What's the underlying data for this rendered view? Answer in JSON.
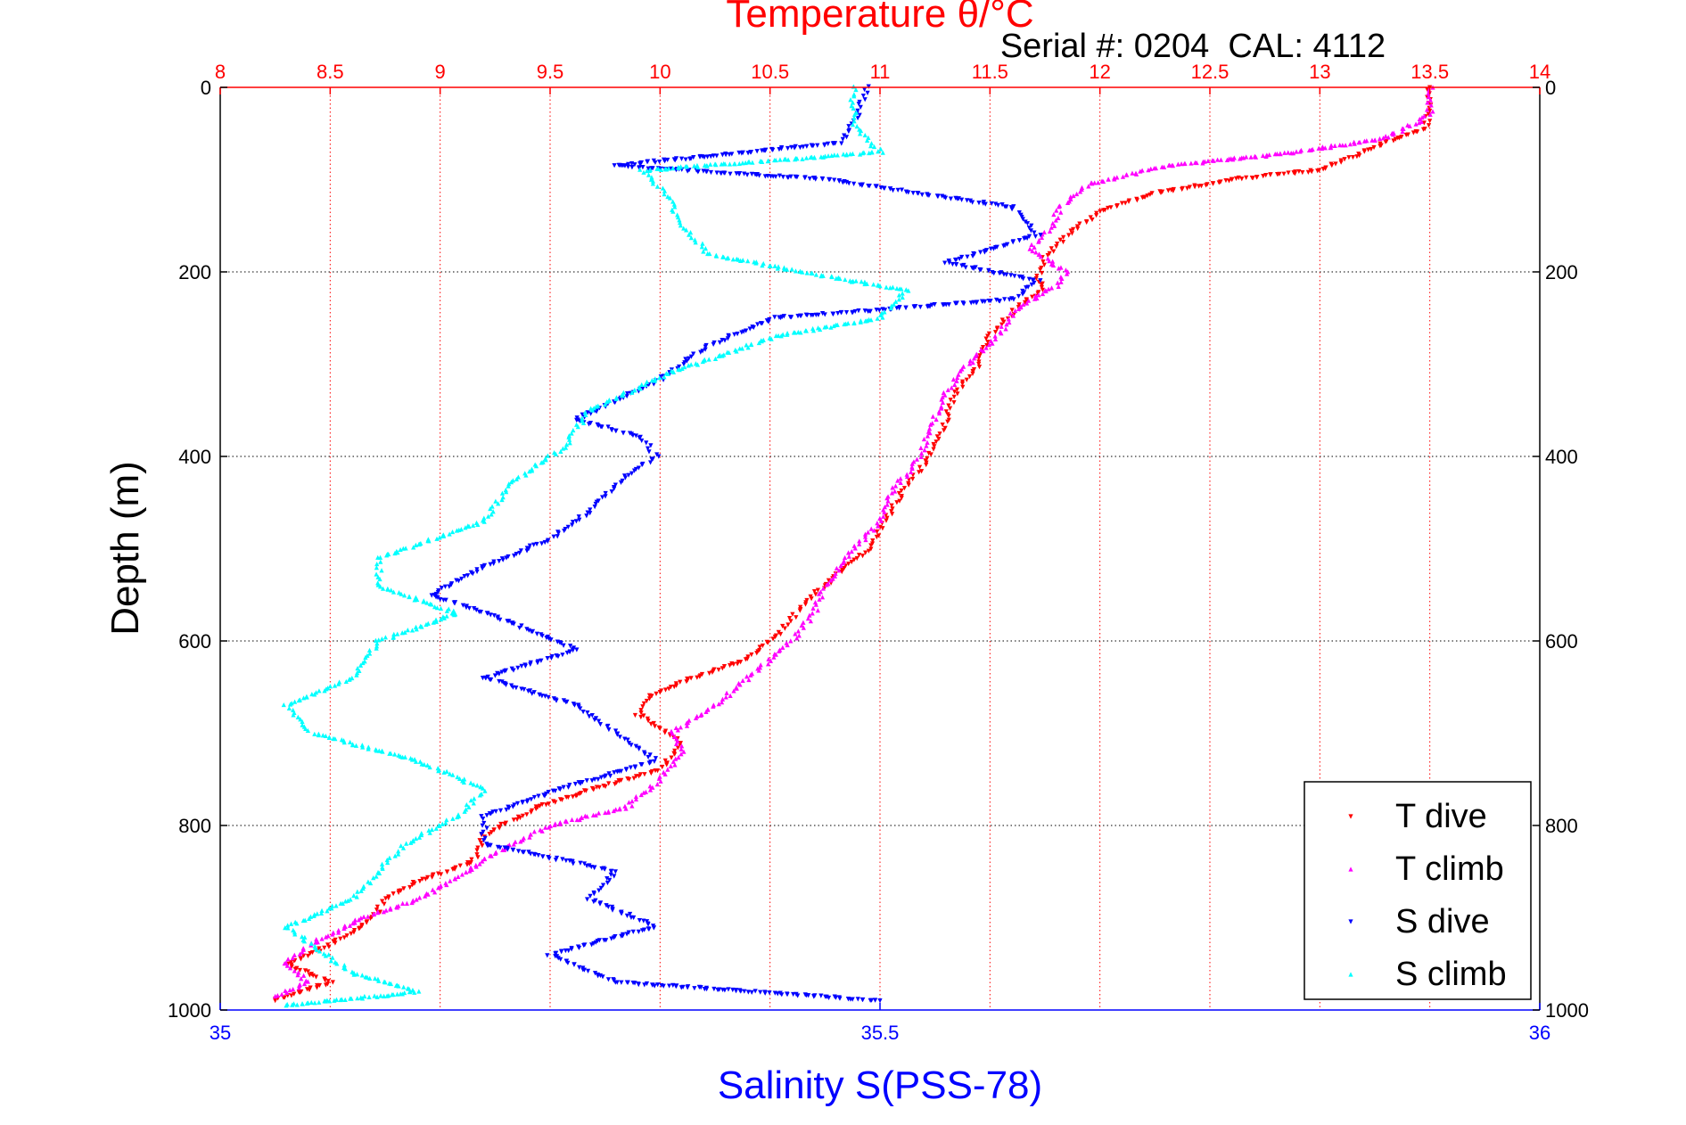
{
  "chart_data": {
    "type": "scatter",
    "title": "Temperature θ/°C",
    "subtitle": "Serial #: 0204  CAL: 4112",
    "ylabel": "Depth (m)",
    "xlabel": "Salinity S(PSS-78)",
    "top_axis": {
      "label": "Temperature θ/°C",
      "range": [
        8,
        14
      ],
      "ticks": [
        "8",
        "8.5",
        "9",
        "9.5",
        "10",
        "10.5",
        "11",
        "11.5",
        "12",
        "12.5",
        "13",
        "13.5",
        "14"
      ],
      "color": "#ff0000"
    },
    "bottom_axis": {
      "label": "Salinity S(PSS-78)",
      "range": [
        35,
        36
      ],
      "ticks": [
        "35",
        "35.5",
        "36"
      ],
      "color": "#0000ff"
    },
    "y_axis": {
      "range": [
        0,
        1000
      ],
      "reversed": true,
      "ticks": [
        "0",
        "200",
        "400",
        "600",
        "800",
        "1000"
      ]
    },
    "grid": true,
    "legend": {
      "placement": "bottom-right",
      "entries": [
        "T dive",
        "T climb",
        "S dive",
        "S climb"
      ]
    },
    "series": [
      {
        "name": "T dive",
        "variable": "temperature",
        "color": "#ff0000",
        "points": [
          [
            13.5,
            0
          ],
          [
            13.5,
            20
          ],
          [
            13.48,
            45
          ],
          [
            13.3,
            60
          ],
          [
            13.0,
            90
          ],
          [
            12.6,
            100
          ],
          [
            12.25,
            115
          ],
          [
            12.0,
            135
          ],
          [
            11.85,
            160
          ],
          [
            11.75,
            185
          ],
          [
            11.72,
            205
          ],
          [
            11.74,
            220
          ],
          [
            11.62,
            240
          ],
          [
            11.5,
            270
          ],
          [
            11.45,
            300
          ],
          [
            11.35,
            330
          ],
          [
            11.3,
            360
          ],
          [
            11.25,
            390
          ],
          [
            11.2,
            410
          ],
          [
            11.1,
            440
          ],
          [
            11.02,
            470
          ],
          [
            10.95,
            500
          ],
          [
            10.8,
            530
          ],
          [
            10.65,
            560
          ],
          [
            10.55,
            590
          ],
          [
            10.4,
            620
          ],
          [
            10.15,
            640
          ],
          [
            9.95,
            660
          ],
          [
            9.9,
            680
          ],
          [
            10.1,
            710
          ],
          [
            10.0,
            740
          ],
          [
            9.7,
            760
          ],
          [
            9.45,
            780
          ],
          [
            9.2,
            810
          ],
          [
            9.15,
            840
          ],
          [
            8.9,
            860
          ],
          [
            8.75,
            880
          ],
          [
            8.7,
            900
          ],
          [
            8.5,
            930
          ],
          [
            8.3,
            950
          ],
          [
            8.5,
            970
          ],
          [
            8.25,
            990
          ]
        ]
      },
      {
        "name": "T climb",
        "variable": "temperature",
        "color": "#ff00ff",
        "points": [
          [
            13.5,
            0
          ],
          [
            13.5,
            30
          ],
          [
            13.3,
            55
          ],
          [
            12.9,
            70
          ],
          [
            12.3,
            85
          ],
          [
            11.95,
            105
          ],
          [
            11.82,
            130
          ],
          [
            11.78,
            150
          ],
          [
            11.68,
            175
          ],
          [
            11.85,
            200
          ],
          [
            11.8,
            215
          ],
          [
            11.62,
            240
          ],
          [
            11.55,
            265
          ],
          [
            11.4,
            300
          ],
          [
            11.3,
            330
          ],
          [
            11.25,
            360
          ],
          [
            11.18,
            400
          ],
          [
            11.05,
            440
          ],
          [
            11.0,
            470
          ],
          [
            10.85,
            510
          ],
          [
            10.75,
            540
          ],
          [
            10.7,
            570
          ],
          [
            10.6,
            600
          ],
          [
            10.5,
            620
          ],
          [
            10.35,
            650
          ],
          [
            10.25,
            670
          ],
          [
            10.05,
            700
          ],
          [
            10.1,
            720
          ],
          [
            10.0,
            750
          ],
          [
            9.85,
            780
          ],
          [
            9.5,
            800
          ],
          [
            9.25,
            830
          ],
          [
            9.05,
            860
          ],
          [
            8.9,
            880
          ],
          [
            8.65,
            900
          ],
          [
            8.4,
            930
          ],
          [
            8.3,
            950
          ],
          [
            8.4,
            970
          ],
          [
            8.25,
            985
          ]
        ]
      },
      {
        "name": "S dive",
        "variable": "salinity",
        "color": "#0000ff",
        "points": [
          [
            35.49,
            0
          ],
          [
            35.48,
            40
          ],
          [
            35.47,
            60
          ],
          [
            35.3,
            85
          ],
          [
            35.46,
            100
          ],
          [
            35.6,
            130
          ],
          [
            35.62,
            160
          ],
          [
            35.55,
            190
          ],
          [
            35.62,
            210
          ],
          [
            35.6,
            230
          ],
          [
            35.42,
            250
          ],
          [
            35.37,
            280
          ],
          [
            35.33,
            320
          ],
          [
            35.27,
            360
          ],
          [
            35.32,
            380
          ],
          [
            35.33,
            400
          ],
          [
            35.3,
            430
          ],
          [
            35.28,
            460
          ],
          [
            35.25,
            490
          ],
          [
            35.2,
            520
          ],
          [
            35.16,
            550
          ],
          [
            35.22,
            580
          ],
          [
            35.27,
            610
          ],
          [
            35.2,
            640
          ],
          [
            35.27,
            670
          ],
          [
            35.3,
            700
          ],
          [
            35.33,
            730
          ],
          [
            35.26,
            760
          ],
          [
            35.2,
            790
          ],
          [
            35.2,
            820
          ],
          [
            35.3,
            850
          ],
          [
            35.28,
            880
          ],
          [
            35.33,
            910
          ],
          [
            35.25,
            940
          ],
          [
            35.3,
            970
          ],
          [
            35.5,
            990
          ]
        ]
      },
      {
        "name": "S climb",
        "variable": "salinity",
        "color": "#00ffff",
        "points": [
          [
            35.48,
            0
          ],
          [
            35.48,
            40
          ],
          [
            35.5,
            70
          ],
          [
            35.32,
            90
          ],
          [
            35.34,
            120
          ],
          [
            35.35,
            150
          ],
          [
            35.37,
            180
          ],
          [
            35.44,
            200
          ],
          [
            35.52,
            220
          ],
          [
            35.5,
            250
          ],
          [
            35.42,
            270
          ],
          [
            35.34,
            310
          ],
          [
            35.28,
            350
          ],
          [
            35.26,
            390
          ],
          [
            35.22,
            430
          ],
          [
            35.2,
            470
          ],
          [
            35.12,
            510
          ],
          [
            35.12,
            540
          ],
          [
            35.18,
            570
          ],
          [
            35.12,
            600
          ],
          [
            35.1,
            640
          ],
          [
            35.05,
            670
          ],
          [
            35.07,
            700
          ],
          [
            35.15,
            730
          ],
          [
            35.2,
            760
          ],
          [
            35.18,
            790
          ],
          [
            35.14,
            820
          ],
          [
            35.12,
            850
          ],
          [
            35.1,
            880
          ],
          [
            35.05,
            910
          ],
          [
            35.08,
            940
          ],
          [
            35.1,
            960
          ],
          [
            35.15,
            980
          ],
          [
            35.05,
            995
          ]
        ]
      }
    ]
  }
}
